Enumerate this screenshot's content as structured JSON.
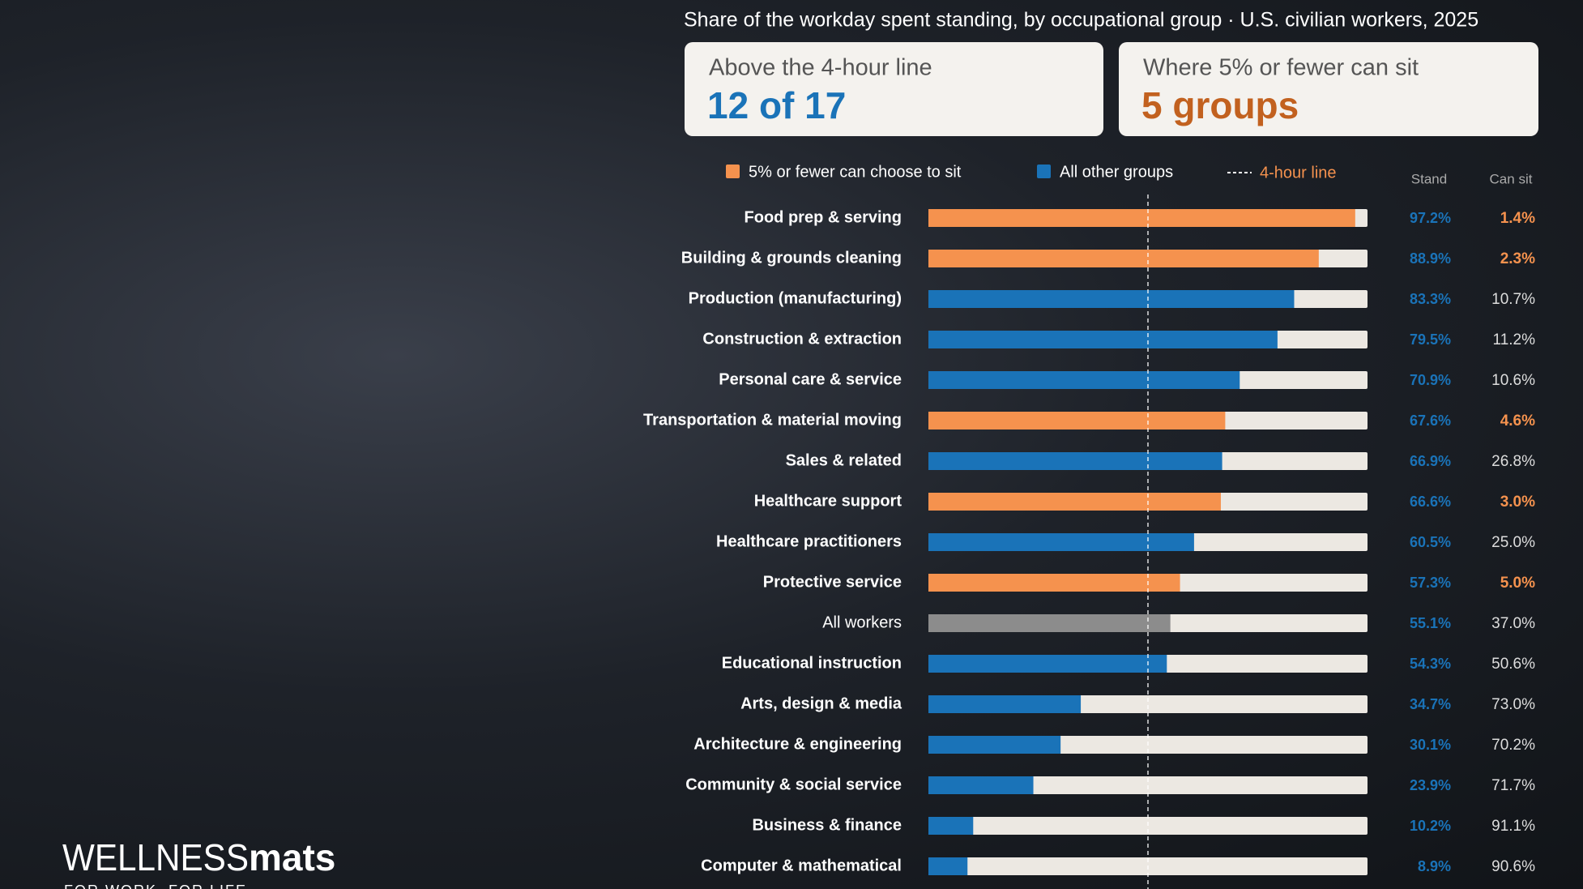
{
  "chart_data": {
    "type": "bar",
    "orientation": "horizontal",
    "subtitle": "Share of the workday spent standing, by occupational group · U.S. civilian workers, 2025",
    "categories": [
      "Food prep & serving",
      "Building & grounds cleaning",
      "Production (manufacturing)",
      "Construction & extraction",
      "Personal care & service",
      "Transportation & material moving",
      "Sales & related",
      "Healthcare support",
      "Healthcare practitioners",
      "Protective service",
      "All workers",
      "Educational instruction",
      "Arts, design & media",
      "Architecture & engineering",
      "Community & social service",
      "Business & finance",
      "Computer & mathematical"
    ],
    "values": [
      97.2,
      88.9,
      83.3,
      79.5,
      70.9,
      67.6,
      66.9,
      66.6,
      60.5,
      57.3,
      55.1,
      54.3,
      34.7,
      30.1,
      23.9,
      10.2,
      8.9
    ],
    "value_labels": [
      "97.2%",
      "88.9%",
      "83.3%",
      "79.5%",
      "70.9%",
      "67.6%",
      "66.9%",
      "66.6%",
      "60.5%",
      "57.3%",
      "55.1%",
      "54.3%",
      "34.7%",
      "30.1%",
      "23.9%",
      "10.2%",
      "8.9%"
    ],
    "colors": [
      "#f5924e",
      "#f5924e",
      "#1a73b8",
      "#1a73b8",
      "#1a73b8",
      "#f5924e",
      "#1a73b8",
      "#f5924e",
      "#1a73b8",
      "#f5924e",
      "#8c8c8c",
      "#1a73b8",
      "#1a73b8",
      "#1a73b8",
      "#1a73b8",
      "#1a73b8",
      "#1a73b8"
    ],
    "can_sit": {
      "values": [
        1.4,
        2.3,
        10.7,
        11.2,
        10.6,
        4.6,
        26.8,
        3.0,
        25.0,
        5.0,
        37.0,
        50.6,
        73.0,
        70.2,
        71.7,
        91.1,
        90.6
      ],
      "value_labels": [
        "1.4%",
        "2.3%",
        "10.7%",
        "11.2%",
        "10.6%",
        "4.6%",
        "26.8%",
        "3.0%",
        "25.0%",
        "5.0%",
        "37.0%",
        "50.6%",
        "73.0%",
        "70.2%",
        "71.7%",
        "91.1%",
        "90.6%"
      ]
    },
    "column_headers": [
      "Stand",
      "Can sit"
    ],
    "legend": [
      {
        "name": "5% or fewer can choose to sit",
        "color": "#f5924e"
      },
      {
        "name": "All other groups",
        "color": "#1a73b8"
      }
    ],
    "reference_line": {
      "value": 50,
      "label": "4-hour line"
    },
    "xlim": [
      0,
      100
    ]
  },
  "cards": [
    {
      "label": "Above the 4-hour line",
      "value": "12 of 17",
      "color": "#1a73b8"
    },
    {
      "label": "Where 5% or fewer can sit",
      "value": "5 groups",
      "color": "#c2611f"
    }
  ],
  "logo": {
    "brand_light": "WELLNESS",
    "brand_bold": "mats",
    "tagline": "FOR WORK. FOR LIFE"
  }
}
